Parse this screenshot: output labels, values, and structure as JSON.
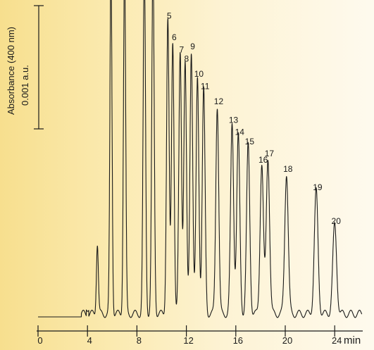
{
  "chart_data": {
    "type": "line",
    "ylabel_line1": "Absorbance (400 nm)",
    "ylabel_line2": "0.001 a.u.",
    "x_unit": "min",
    "xlim": [
      0,
      26.5
    ],
    "x_ticks": [
      0,
      4,
      8,
      12,
      16,
      20,
      24
    ],
    "baseline": 0,
    "peaks": [
      {
        "label": "",
        "t": 4.8,
        "h": 0.23
      },
      {
        "label": "",
        "t": 5.9,
        "h": 1.15
      },
      {
        "label": "",
        "t": 7.0,
        "h": 1.15
      },
      {
        "label": "",
        "t": 8.6,
        "h": 1.15
      },
      {
        "label": "",
        "t": 9.3,
        "h": 1.15
      },
      {
        "label": "5",
        "t": 10.5,
        "h": 0.96
      },
      {
        "label": "6",
        "t": 10.9,
        "h": 0.89
      },
      {
        "label": "7",
        "t": 11.5,
        "h": 0.85
      },
      {
        "label": "8",
        "t": 11.9,
        "h": 0.82
      },
      {
        "label": "9",
        "t": 12.4,
        "h": 0.86
      },
      {
        "label": "10",
        "t": 12.9,
        "h": 0.77
      },
      {
        "label": "11",
        "t": 13.4,
        "h": 0.73
      },
      {
        "label": "12",
        "t": 14.5,
        "h": 0.68
      },
      {
        "label": "13",
        "t": 15.7,
        "h": 0.62
      },
      {
        "label": "14",
        "t": 16.2,
        "h": 0.58
      },
      {
        "label": "15",
        "t": 17.0,
        "h": 0.55
      },
      {
        "label": "16",
        "t": 18.1,
        "h": 0.49
      },
      {
        "label": "17",
        "t": 18.6,
        "h": 0.51
      },
      {
        "label": "18",
        "t": 20.1,
        "h": 0.46
      },
      {
        "label": "19",
        "t": 22.5,
        "h": 0.4
      },
      {
        "label": "20",
        "t": 24.0,
        "h": 0.29
      }
    ]
  }
}
